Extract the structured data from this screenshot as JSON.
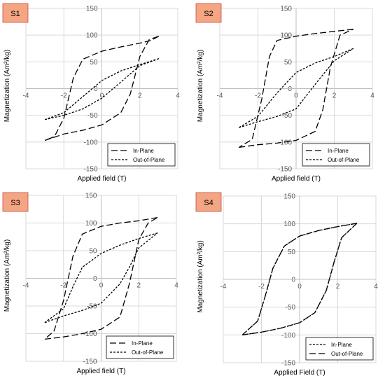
{
  "colors": {
    "background": "#ffffff",
    "grid": "#d9d9d9",
    "axis": "#bfbfbf",
    "text": "#595959",
    "curve": "#000000",
    "sample_tag_fill": "#f4a582",
    "sample_tag_border": "#c0504d"
  },
  "chart_data": [
    {
      "type": "line",
      "tag": "S1",
      "xlabel": "Applied field (T)",
      "ylabel": "Magnetization  (Am²/kg)",
      "xlim": [
        -4,
        4
      ],
      "ylim": [
        -150,
        150
      ],
      "x_ticks": [
        "-4",
        "-2",
        "0",
        "2",
        "4"
      ],
      "y_ticks": [
        "150",
        "100",
        "50",
        "0",
        "-50",
        "-100",
        "-150"
      ],
      "grid": true,
      "legend_position": "bottom-right",
      "series": [
        {
          "name": "In-Plane",
          "style": "long-dash",
          "upper": {
            "x": [
              3.0,
              2.6,
              2.0,
              1.0,
              0.0,
              -1.0,
              -1.5,
              -2.0,
              -2.5,
              -3.0
            ],
            "y": [
              98,
              90,
              85,
              78,
              70,
              55,
              20,
              -55,
              -90,
              -97
            ]
          },
          "lower": {
            "x": [
              -3.0,
              -2.0,
              -1.0,
              0.0,
              1.0,
              1.5,
              2.0,
              2.5,
              3.0
            ],
            "y": [
              -97,
              -85,
              -78,
              -68,
              -45,
              -10,
              60,
              92,
              98
            ]
          }
        },
        {
          "name": "Out-of-Plane",
          "style": "short-dash",
          "upper": {
            "x": [
              3.0,
              2.0,
              1.0,
              0.0,
              -1.0,
              -2.0,
              -3.0
            ],
            "y": [
              56,
              45,
              33,
              15,
              -15,
              -45,
              -58
            ]
          },
          "lower": {
            "x": [
              -3.0,
              -2.0,
              -1.0,
              0.0,
              1.0,
              2.0,
              3.0
            ],
            "y": [
              -58,
              -50,
              -38,
              -18,
              12,
              43,
              56
            ]
          }
        }
      ]
    },
    {
      "type": "line",
      "tag": "S2",
      "xlabel": "Applied field (T)",
      "ylabel": "Magnetization  (Am²/kg)",
      "xlim": [
        -4,
        4
      ],
      "ylim": [
        -150,
        150
      ],
      "x_ticks": [
        "-4",
        "-2",
        "0",
        "2",
        "4"
      ],
      "y_ticks": [
        "150",
        "100",
        "50",
        "0",
        "-50",
        "-100",
        "-150"
      ],
      "grid": true,
      "legend_position": "bottom-right",
      "series": [
        {
          "name": "In-Plane",
          "style": "long-dash",
          "upper": {
            "x": [
              3.0,
              2.0,
              1.0,
              0.0,
              -1.0,
              -1.4,
              -1.8,
              -2.3,
              -3.0
            ],
            "y": [
              111,
              107,
              103,
              98,
              90,
              60,
              -20,
              -95,
              -110
            ]
          },
          "lower": {
            "x": [
              -3.0,
              -2.0,
              -1.0,
              0.0,
              1.0,
              1.4,
              1.8,
              2.3,
              3.0
            ],
            "y": [
              -110,
              -105,
              -102,
              -97,
              -80,
              -40,
              40,
              100,
              111
            ]
          }
        },
        {
          "name": "Out-of-Plane",
          "style": "short-dash",
          "upper": {
            "x": [
              3.0,
              2.0,
              1.0,
              0.0,
              -1.0,
              -2.0,
              -3.0
            ],
            "y": [
              75,
              60,
              48,
              30,
              -8,
              -52,
              -73
            ]
          },
          "lower": {
            "x": [
              -3.0,
              -2.0,
              -1.0,
              0.0,
              1.0,
              2.0,
              3.0
            ],
            "y": [
              -73,
              -62,
              -52,
              -38,
              8,
              52,
              75
            ]
          }
        }
      ]
    },
    {
      "type": "line",
      "tag": "S3",
      "xlabel": "Applied field (T)",
      "ylabel": "Magnetization (Am²/kg)",
      "xlim": [
        -4,
        4
      ],
      "ylim": [
        -150,
        150
      ],
      "x_ticks": [
        "-4",
        "-2",
        "0",
        "2",
        "4"
      ],
      "y_ticks": [
        "150",
        "100",
        "50",
        "0",
        "-50",
        "-100",
        "-150"
      ],
      "grid": true,
      "legend_position": "bottom-right",
      "series": [
        {
          "name": "In-Plane",
          "style": "long-dash",
          "upper": {
            "x": [
              3.0,
              2.0,
              1.0,
              0.0,
              -1.0,
              -1.5,
              -2.0,
              -2.5,
              -3.0
            ],
            "y": [
              110,
              104,
              100,
              94,
              80,
              40,
              -40,
              -95,
              -110
            ]
          },
          "lower": {
            "x": [
              -3.0,
              -2.0,
              -1.0,
              0.0,
              1.0,
              1.5,
              2.0,
              2.5,
              3.0
            ],
            "y": [
              -110,
              -106,
              -100,
              -92,
              -70,
              -10,
              70,
              100,
              110
            ]
          }
        },
        {
          "name": "Out-of-Plane",
          "style": "short-dash",
          "upper": {
            "x": [
              3.0,
              2.0,
              1.0,
              0.0,
              -1.0,
              -1.5,
              -2.0,
              -3.0
            ],
            "y": [
              82,
              72,
              60,
              45,
              20,
              -15,
              -55,
              -80
            ]
          },
          "lower": {
            "x": [
              -3.0,
              -2.0,
              -1.0,
              0.0,
              1.0,
              1.5,
              2.0,
              3.0
            ],
            "y": [
              -80,
              -68,
              -58,
              -45,
              -10,
              20,
              55,
              82
            ]
          }
        }
      ]
    },
    {
      "type": "line",
      "tag": "S4",
      "xlabel": "Applied Field (T)",
      "ylabel": "Magnetization (Am²/kg)",
      "xlim": [
        -4,
        4
      ],
      "ylim": [
        -150,
        150
      ],
      "x_ticks": [
        "-4",
        "-2",
        "0",
        "2",
        "4"
      ],
      "y_ticks": [
        "150",
        "100",
        "50",
        "0",
        "-50",
        "-100",
        "-150"
      ],
      "grid": true,
      "legend_position": "bottom-right",
      "series": [
        {
          "name": "In-Plane",
          "style": "short-dash",
          "upper": {
            "x": [
              3.0,
              2.0,
              1.0,
              0.0,
              -0.8,
              -1.4,
              -1.8,
              -2.2,
              -3.0
            ],
            "y": [
              101,
              95,
              88,
              78,
              60,
              20,
              -30,
              -75,
              -100
            ]
          },
          "lower": {
            "x": [
              -3.0,
              -2.0,
              -1.0,
              0.0,
              0.8,
              1.4,
              1.8,
              2.2,
              3.0
            ],
            "y": [
              -100,
              -95,
              -88,
              -78,
              -60,
              -20,
              30,
              75,
              101
            ]
          }
        },
        {
          "name": "Out-of-Plane",
          "style": "long-dash",
          "upper": {
            "x": [
              3.0,
              2.0,
              1.0,
              0.0,
              -0.8,
              -1.4,
              -1.8,
              -2.2,
              -3.0
            ],
            "y": [
              101,
              95,
              88,
              78,
              60,
              20,
              -30,
              -75,
              -100
            ]
          },
          "lower": {
            "x": [
              -3.0,
              -2.0,
              -1.0,
              0.0,
              0.8,
              1.4,
              1.8,
              2.2,
              3.0
            ],
            "y": [
              -100,
              -95,
              -88,
              -78,
              -60,
              -20,
              30,
              75,
              101
            ]
          }
        }
      ]
    }
  ]
}
